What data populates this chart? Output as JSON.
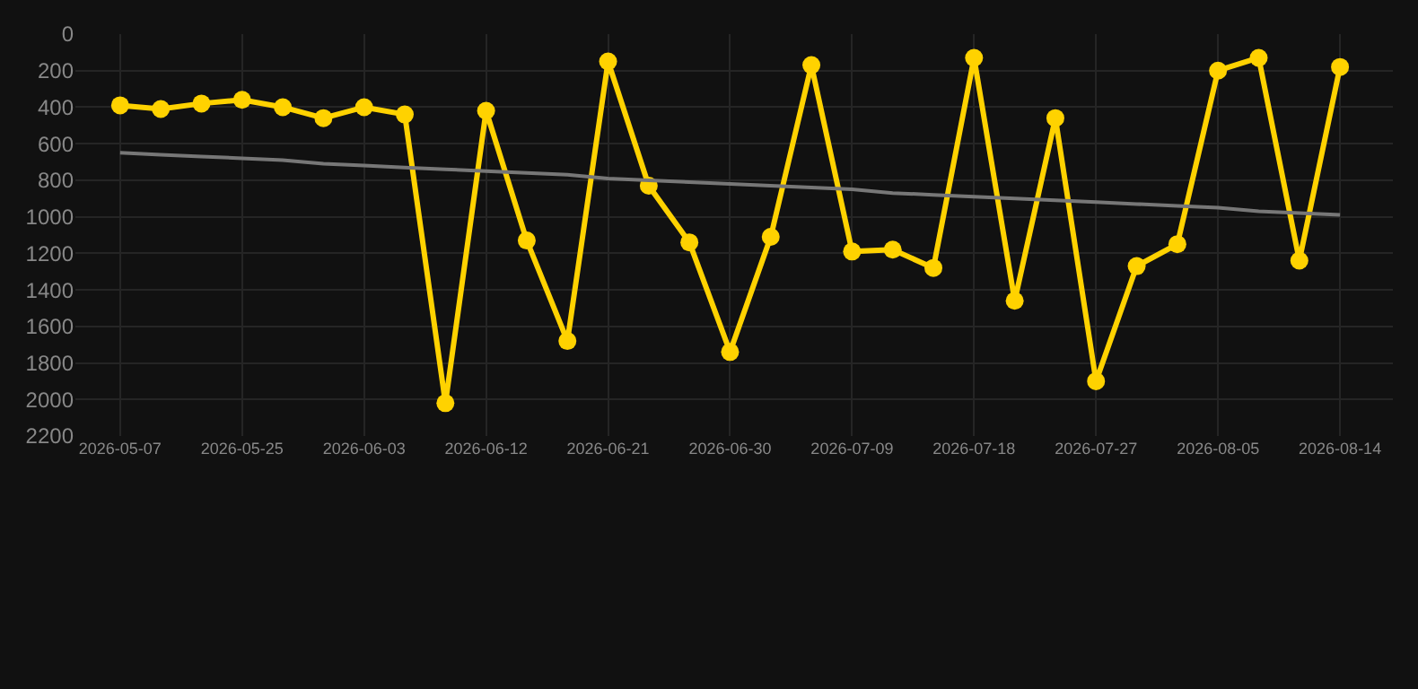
{
  "chart_data": {
    "type": "line",
    "categories": [
      "2026-05-07",
      null,
      null,
      "2026-05-25",
      null,
      null,
      "2026-06-03",
      null,
      null,
      "2026-06-12",
      null,
      null,
      "2026-06-21",
      null,
      null,
      "2026-06-30",
      null,
      null,
      "2026-07-09",
      null,
      null,
      "2026-07-18",
      null,
      null,
      "2026-07-27",
      null,
      null,
      "2026-08-05",
      null,
      null,
      "2026-08-14"
    ],
    "series": [
      {
        "color": "#ffd200",
        "marker": "circle",
        "values": [
          390,
          410,
          380,
          360,
          400,
          460,
          400,
          440,
          2020,
          420,
          1130,
          1680,
          150,
          830,
          1140,
          1740,
          1110,
          170,
          1190,
          1180,
          1280,
          130,
          1460,
          460,
          1900,
          1270,
          1150,
          200,
          130,
          1240,
          180
        ]
      },
      {
        "color": "#777777",
        "marker": "none",
        "values": [
          650,
          660,
          670,
          680,
          690,
          710,
          720,
          730,
          740,
          750,
          760,
          770,
          790,
          800,
          810,
          820,
          830,
          840,
          850,
          870,
          880,
          890,
          900,
          910,
          920,
          930,
          940,
          950,
          970,
          980,
          990
        ]
      }
    ],
    "ylim": [
      2200,
      0
    ],
    "yticks": [
      0,
      200,
      400,
      600,
      800,
      1000,
      1200,
      1400,
      1600,
      1800,
      2000,
      2200
    ],
    "grid": true
  }
}
